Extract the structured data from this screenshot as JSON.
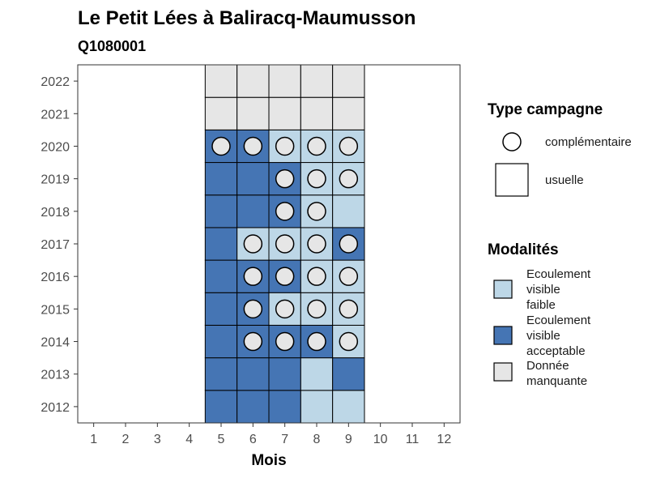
{
  "chart_data": {
    "type": "heatmap",
    "title": "Le Petit Lées à Baliracq-Maumusson",
    "subtitle": "Q1080001",
    "xlabel": "Mois",
    "ylabel": "",
    "x_ticks": [
      "1",
      "2",
      "3",
      "4",
      "5",
      "6",
      "7",
      "8",
      "9",
      "10",
      "11",
      "12"
    ],
    "y_ticks": [
      "2012",
      "2013",
      "2014",
      "2015",
      "2016",
      "2017",
      "2018",
      "2019",
      "2020",
      "2021",
      "2022"
    ],
    "xlim": [
      0.5,
      12.5
    ],
    "ylim": [
      2011.5,
      2022.5
    ],
    "grid": false,
    "colors": {
      "faible": "#bdd7e7",
      "acceptable": "#4575b4",
      "manquante": "#e6e6e6"
    },
    "legend_type": {
      "title": "Type campagne",
      "items": [
        {
          "label": "complémentaire",
          "shape": "circle"
        },
        {
          "label": "usuelle",
          "shape": "square"
        }
      ]
    },
    "legend_modalites": {
      "title": "Modalités",
      "items": [
        {
          "key": "faible",
          "lines": [
            "Ecoulement",
            "visible",
            "faible"
          ]
        },
        {
          "key": "acceptable",
          "lines": [
            "Ecoulement",
            "visible",
            "acceptable"
          ]
        },
        {
          "key": "manquante",
          "lines": [
            "Donnée",
            "manquante"
          ]
        }
      ]
    },
    "cells": [
      {
        "year": 2012,
        "month": 5,
        "modalite": "acceptable",
        "complementaire": false
      },
      {
        "year": 2012,
        "month": 6,
        "modalite": "acceptable",
        "complementaire": false
      },
      {
        "year": 2012,
        "month": 7,
        "modalite": "acceptable",
        "complementaire": false
      },
      {
        "year": 2012,
        "month": 8,
        "modalite": "faible",
        "complementaire": false
      },
      {
        "year": 2012,
        "month": 9,
        "modalite": "faible",
        "complementaire": false
      },
      {
        "year": 2013,
        "month": 5,
        "modalite": "acceptable",
        "complementaire": false
      },
      {
        "year": 2013,
        "month": 6,
        "modalite": "acceptable",
        "complementaire": false
      },
      {
        "year": 2013,
        "month": 7,
        "modalite": "acceptable",
        "complementaire": false
      },
      {
        "year": 2013,
        "month": 8,
        "modalite": "faible",
        "complementaire": false
      },
      {
        "year": 2013,
        "month": 9,
        "modalite": "acceptable",
        "complementaire": false
      },
      {
        "year": 2014,
        "month": 5,
        "modalite": "acceptable",
        "complementaire": false
      },
      {
        "year": 2014,
        "month": 6,
        "modalite": "acceptable",
        "complementaire": true
      },
      {
        "year": 2014,
        "month": 7,
        "modalite": "acceptable",
        "complementaire": true
      },
      {
        "year": 2014,
        "month": 8,
        "modalite": "acceptable",
        "complementaire": true
      },
      {
        "year": 2014,
        "month": 9,
        "modalite": "faible",
        "complementaire": true
      },
      {
        "year": 2015,
        "month": 5,
        "modalite": "acceptable",
        "complementaire": false
      },
      {
        "year": 2015,
        "month": 6,
        "modalite": "acceptable",
        "complementaire": true
      },
      {
        "year": 2015,
        "month": 7,
        "modalite": "faible",
        "complementaire": true
      },
      {
        "year": 2015,
        "month": 8,
        "modalite": "faible",
        "complementaire": true
      },
      {
        "year": 2015,
        "month": 9,
        "modalite": "faible",
        "complementaire": true
      },
      {
        "year": 2016,
        "month": 5,
        "modalite": "acceptable",
        "complementaire": false
      },
      {
        "year": 2016,
        "month": 6,
        "modalite": "acceptable",
        "complementaire": true
      },
      {
        "year": 2016,
        "month": 7,
        "modalite": "acceptable",
        "complementaire": true
      },
      {
        "year": 2016,
        "month": 8,
        "modalite": "faible",
        "complementaire": true
      },
      {
        "year": 2016,
        "month": 9,
        "modalite": "faible",
        "complementaire": true
      },
      {
        "year": 2017,
        "month": 5,
        "modalite": "acceptable",
        "complementaire": false
      },
      {
        "year": 2017,
        "month": 6,
        "modalite": "faible",
        "complementaire": true
      },
      {
        "year": 2017,
        "month": 7,
        "modalite": "faible",
        "complementaire": true
      },
      {
        "year": 2017,
        "month": 8,
        "modalite": "faible",
        "complementaire": true
      },
      {
        "year": 2017,
        "month": 9,
        "modalite": "acceptable",
        "complementaire": true
      },
      {
        "year": 2018,
        "month": 5,
        "modalite": "acceptable",
        "complementaire": false
      },
      {
        "year": 2018,
        "month": 6,
        "modalite": "acceptable",
        "complementaire": false
      },
      {
        "year": 2018,
        "month": 7,
        "modalite": "acceptable",
        "complementaire": true
      },
      {
        "year": 2018,
        "month": 8,
        "modalite": "faible",
        "complementaire": true
      },
      {
        "year": 2018,
        "month": 9,
        "modalite": "faible",
        "complementaire": false
      },
      {
        "year": 2019,
        "month": 5,
        "modalite": "acceptable",
        "complementaire": false
      },
      {
        "year": 2019,
        "month": 6,
        "modalite": "acceptable",
        "complementaire": false
      },
      {
        "year": 2019,
        "month": 7,
        "modalite": "acceptable",
        "complementaire": true
      },
      {
        "year": 2019,
        "month": 8,
        "modalite": "faible",
        "complementaire": true
      },
      {
        "year": 2019,
        "month": 9,
        "modalite": "faible",
        "complementaire": true
      },
      {
        "year": 2020,
        "month": 5,
        "modalite": "acceptable",
        "complementaire": true
      },
      {
        "year": 2020,
        "month": 6,
        "modalite": "acceptable",
        "complementaire": true
      },
      {
        "year": 2020,
        "month": 7,
        "modalite": "faible",
        "complementaire": true
      },
      {
        "year": 2020,
        "month": 8,
        "modalite": "faible",
        "complementaire": true
      },
      {
        "year": 2020,
        "month": 9,
        "modalite": "faible",
        "complementaire": true
      },
      {
        "year": 2021,
        "month": 5,
        "modalite": "manquante",
        "complementaire": false
      },
      {
        "year": 2021,
        "month": 6,
        "modalite": "manquante",
        "complementaire": false
      },
      {
        "year": 2021,
        "month": 7,
        "modalite": "manquante",
        "complementaire": false
      },
      {
        "year": 2021,
        "month": 8,
        "modalite": "manquante",
        "complementaire": false
      },
      {
        "year": 2021,
        "month": 9,
        "modalite": "manquante",
        "complementaire": false
      },
      {
        "year": 2022,
        "month": 5,
        "modalite": "manquante",
        "complementaire": false
      },
      {
        "year": 2022,
        "month": 6,
        "modalite": "manquante",
        "complementaire": false
      },
      {
        "year": 2022,
        "month": 7,
        "modalite": "manquante",
        "complementaire": false
      },
      {
        "year": 2022,
        "month": 8,
        "modalite": "manquante",
        "complementaire": false
      },
      {
        "year": 2022,
        "month": 9,
        "modalite": "manquante",
        "complementaire": false
      }
    ]
  }
}
